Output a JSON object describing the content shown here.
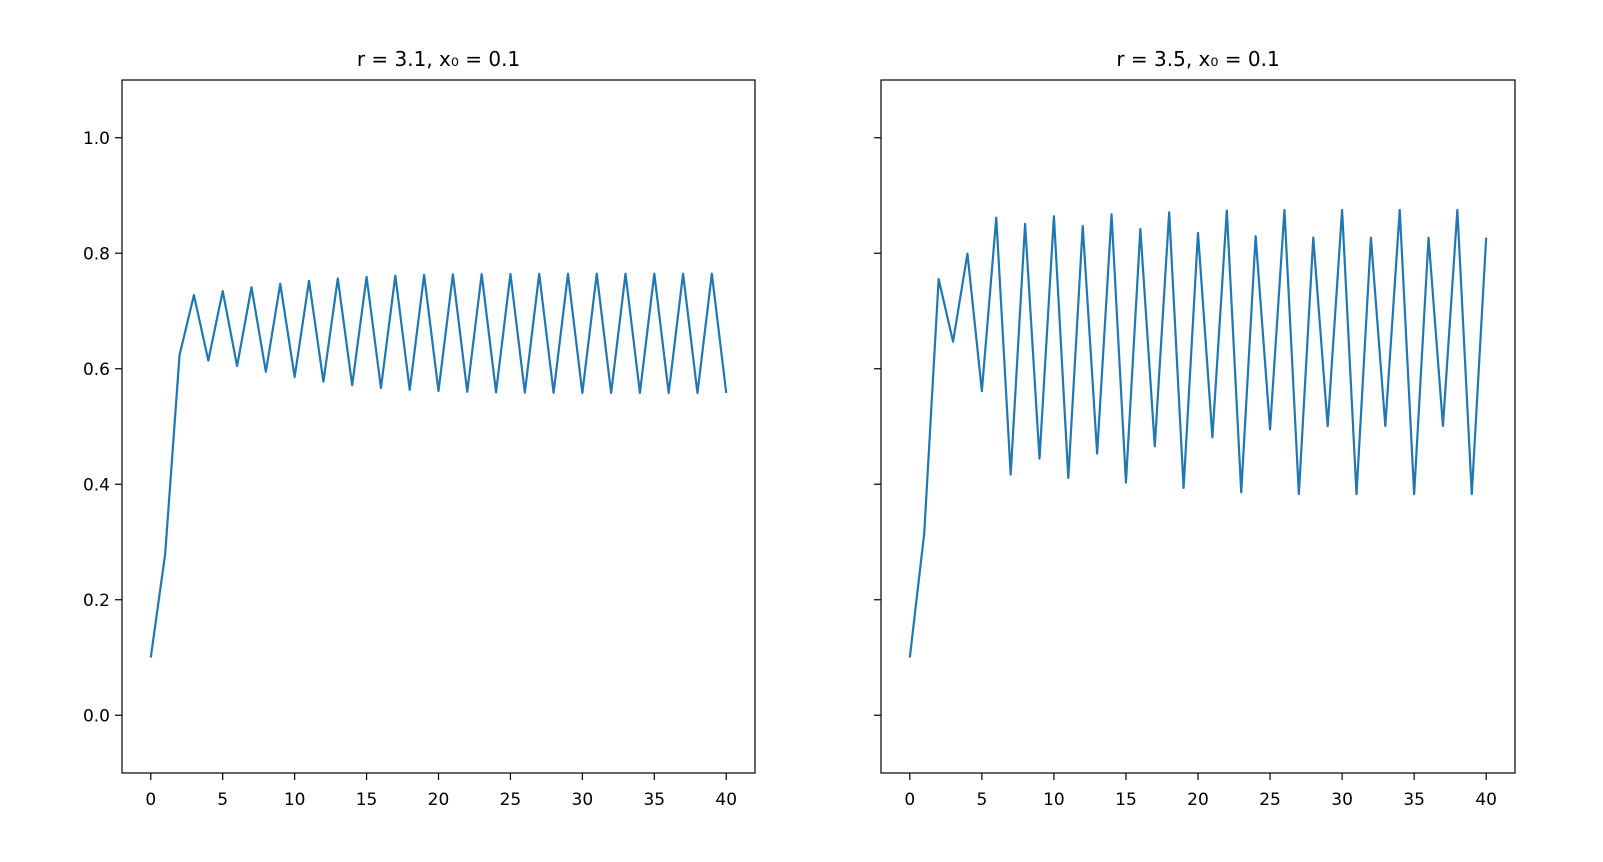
{
  "chart_data": [
    {
      "type": "line",
      "title": "r = 3.1, x₀ = 0.1",
      "x": [
        0,
        1,
        2,
        3,
        4,
        5,
        6,
        7,
        8,
        9,
        10,
        11,
        12,
        13,
        14,
        15,
        16,
        17,
        18,
        19,
        20,
        21,
        22,
        23,
        24,
        25,
        26,
        27,
        28,
        29,
        30,
        31,
        32,
        33,
        34,
        35,
        36,
        37,
        38,
        39,
        40
      ],
      "series": [
        {
          "color": "#1f77b4",
          "values": [
            0.1,
            0.279,
            0.6236,
            0.7276,
            0.6143,
            0.7345,
            0.6046,
            0.7411,
            0.5948,
            0.7471,
            0.5857,
            0.7523,
            0.5777,
            0.7563,
            0.5714,
            0.7592,
            0.5667,
            0.7612,
            0.5635,
            0.7625,
            0.5614,
            0.7633,
            0.5601,
            0.7638,
            0.5592,
            0.7641,
            0.5587,
            0.7643,
            0.5584,
            0.7644,
            0.5582,
            0.7645,
            0.5581,
            0.7645,
            0.5581,
            0.7646,
            0.558,
            0.7646,
            0.558,
            0.7646,
            0.558
          ]
        }
      ],
      "xlim": [
        -2,
        42
      ],
      "xticks": [
        0,
        5,
        10,
        15,
        20,
        25,
        30,
        35,
        40
      ],
      "ylim": [
        -0.1,
        1.1
      ],
      "yticks": [
        {
          "value": 0,
          "label": "0.0"
        },
        0.2,
        0.4,
        0.6,
        0.8,
        {
          "value": 1,
          "label": "1.0"
        }
      ]
    },
    {
      "type": "line",
      "title": "r = 3.5, x₀ = 0.1",
      "x": [
        0,
        1,
        2,
        3,
        4,
        5,
        6,
        7,
        8,
        9,
        10,
        11,
        12,
        13,
        14,
        15,
        16,
        17,
        18,
        19,
        20,
        21,
        22,
        23,
        24,
        25,
        26,
        27,
        28,
        29,
        30,
        31,
        32,
        33,
        34,
        35,
        36,
        37,
        38,
        39,
        40
      ],
      "series": [
        {
          "color": "#1f77b4",
          "values": [
            0.1,
            0.315,
            0.7552,
            0.647,
            0.7993,
            0.5614,
            0.8618,
            0.4168,
            0.8508,
            0.4443,
            0.8641,
            0.4109,
            0.8472,
            0.4531,
            0.8673,
            0.4029,
            0.842,
            0.4657,
            0.8709,
            0.3936,
            0.8353,
            0.4814,
            0.8738,
            0.386,
            0.8295,
            0.495,
            0.8749,
            0.383,
            0.8271,
            0.5005,
            0.875,
            0.3828,
            0.8269,
            0.5009,
            0.875,
            0.3828,
            0.8269,
            0.5009,
            0.875,
            0.3828,
            0.8269
          ]
        }
      ],
      "xlim": [
        -2,
        42
      ],
      "xticks": [
        0,
        5,
        10,
        15,
        20,
        25,
        30,
        35,
        40
      ],
      "ylim": [
        -0.1,
        1.1
      ]
    }
  ]
}
